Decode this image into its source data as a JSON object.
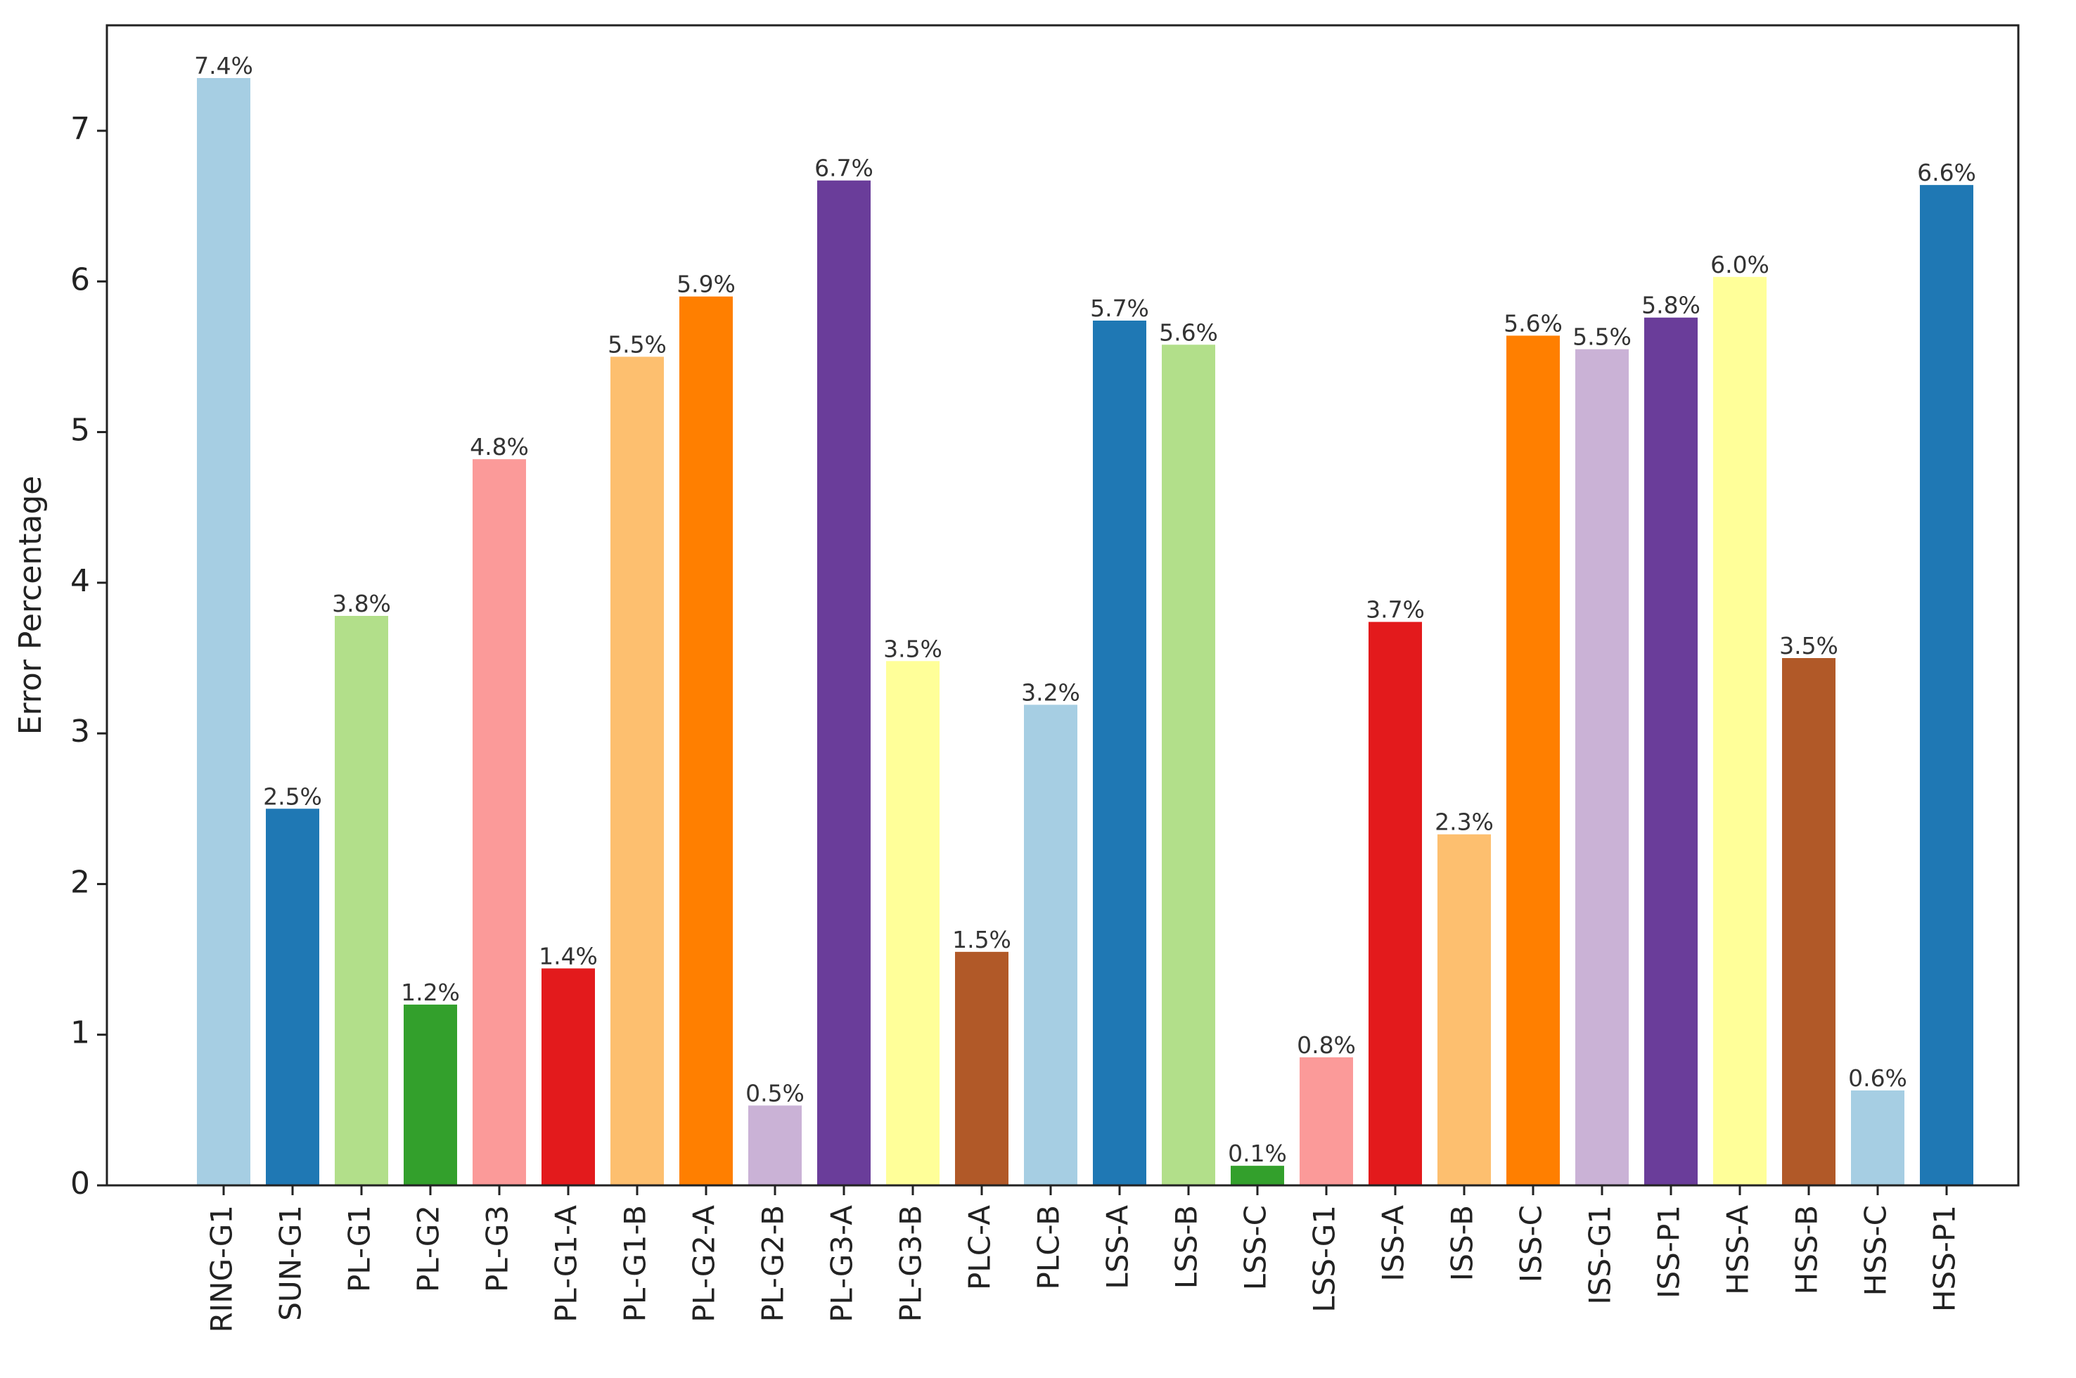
{
  "chart_data": {
    "type": "bar",
    "title": "",
    "xlabel": "",
    "ylabel": "Error Percentage",
    "ylim": [
      0,
      7.7
    ],
    "yticks": [
      0,
      1,
      2,
      3,
      4,
      5,
      6,
      7
    ],
    "grid": false,
    "legend": "none",
    "categories": [
      "RING-G1",
      "SUN-G1",
      "PL-G1",
      "PL-G2",
      "PL-G3",
      "PL-G1-A",
      "PL-G1-B",
      "PL-G2-A",
      "PL-G2-B",
      "PL-G3-A",
      "PL-G3-B",
      "PLC-A",
      "PLC-B",
      "LSS-A",
      "LSS-B",
      "LSS-C",
      "LSS-G1",
      "ISS-A",
      "ISS-B",
      "ISS-C",
      "ISS-G1",
      "ISS-P1",
      "HSS-A",
      "HSS-B",
      "HSS-C",
      "HSS-P1"
    ],
    "values": [
      7.35,
      2.5,
      3.78,
      1.2,
      4.82,
      1.44,
      5.5,
      5.9,
      0.53,
      6.67,
      3.48,
      1.55,
      3.19,
      5.74,
      5.58,
      0.13,
      0.85,
      3.74,
      2.33,
      5.64,
      5.55,
      5.76,
      6.03,
      3.5,
      0.63,
      6.64
    ],
    "value_labels": [
      "7.4%",
      "2.5%",
      "3.8%",
      "1.2%",
      "4.8%",
      "1.4%",
      "5.5%",
      "5.9%",
      "0.5%",
      "6.7%",
      "3.5%",
      "1.5%",
      "3.2%",
      "5.7%",
      "5.6%",
      "0.1%",
      "0.8%",
      "3.7%",
      "2.3%",
      "5.6%",
      "5.5%",
      "5.8%",
      "6.0%",
      "3.5%",
      "0.6%",
      "6.6%"
    ],
    "colors": [
      "#a6cee3",
      "#1f78b4",
      "#b2df8a",
      "#33a02c",
      "#fb9a99",
      "#e31a1c",
      "#fdbf6f",
      "#ff7f00",
      "#cab2d6",
      "#6a3d9a",
      "#ffff99",
      "#b15928",
      "#a6cee3",
      "#1f78b4",
      "#b2df8a",
      "#33a02c",
      "#fb9a99",
      "#e31a1c",
      "#fdbf6f",
      "#ff7f00",
      "#cab2d6",
      "#6a3d9a",
      "#ffff99",
      "#b15928",
      "#a6cee3",
      "#1f78b4"
    ]
  }
}
